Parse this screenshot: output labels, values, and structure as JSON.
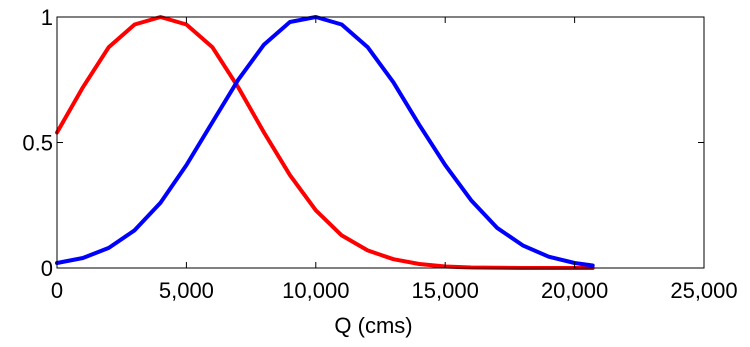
{
  "chart_data": {
    "type": "line",
    "title": "",
    "xlabel": "Q (cms)",
    "ylabel": "",
    "xlim": [
      0,
      25000
    ],
    "ylim": [
      0,
      1
    ],
    "x_ticks": [
      {
        "value": 0,
        "label": "0"
      },
      {
        "value": 5000,
        "label": "5,000"
      },
      {
        "value": 10000,
        "label": "10,000"
      },
      {
        "value": 15000,
        "label": "15,000"
      },
      {
        "value": 20000,
        "label": "20,000"
      },
      {
        "value": 25000,
        "label": "25,000"
      }
    ],
    "y_ticks": [
      {
        "value": 0,
        "label": "0"
      },
      {
        "value": 0.5,
        "label": "0.5"
      },
      {
        "value": 1,
        "label": "1"
      }
    ],
    "grid": false,
    "legend": null,
    "series": [
      {
        "color": "#ff0000",
        "x": [
          0,
          1000,
          2000,
          3000,
          4000,
          5000,
          6000,
          7000,
          8000,
          9000,
          10000,
          11000,
          12000,
          13000,
          14000,
          15000,
          16000,
          17000,
          18000,
          19000,
          20000,
          20700
        ],
        "y": [
          0.54,
          0.72,
          0.88,
          0.97,
          1.0,
          0.97,
          0.88,
          0.72,
          0.54,
          0.37,
          0.23,
          0.13,
          0.07,
          0.035,
          0.016,
          0.006,
          0.002,
          0.001,
          0.0,
          0.0,
          0.0,
          0.0
        ]
      },
      {
        "color": "#0000ff",
        "x": [
          0,
          1000,
          2000,
          3000,
          4000,
          5000,
          6000,
          7000,
          8000,
          9000,
          10000,
          11000,
          12000,
          13000,
          14000,
          15000,
          16000,
          17000,
          18000,
          19000,
          20000,
          20700
        ],
        "y": [
          0.02,
          0.04,
          0.08,
          0.15,
          0.26,
          0.41,
          0.58,
          0.75,
          0.89,
          0.98,
          1.0,
          0.97,
          0.88,
          0.74,
          0.57,
          0.41,
          0.27,
          0.16,
          0.09,
          0.045,
          0.02,
          0.01
        ]
      }
    ]
  }
}
